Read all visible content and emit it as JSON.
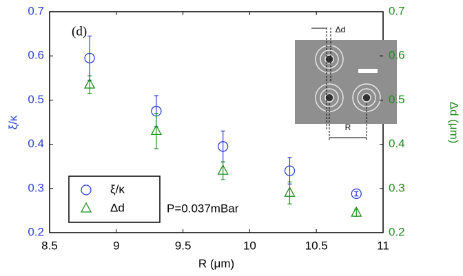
{
  "chart_data": {
    "type": "scatter",
    "panel_label": "(d)",
    "annotation": "P=0.037mBar",
    "x_label": "R (μm)",
    "y_label": "ξ/κ",
    "y2_label": "Δd (μm)",
    "inset_labels": [
      "Δd",
      "R"
    ],
    "x": [
      8.8,
      9.3,
      9.8,
      10.3,
      10.8
    ],
    "series": [
      {
        "name": "ξ/κ",
        "color": "#2a3fd4",
        "marker": "circle",
        "values": [
          0.595,
          0.475,
          0.395,
          0.34,
          0.288
        ],
        "errors": [
          0.05,
          0.035,
          0.035,
          0.03,
          0.005
        ]
      },
      {
        "name": "Δd",
        "color": "#1e8c1e",
        "marker": "triangle",
        "axis": "y2",
        "values": [
          0.535,
          0.43,
          0.34,
          0.29,
          0.245
        ],
        "errors": [
          0.02,
          0.04,
          0.02,
          0.025,
          0.008
        ]
      }
    ],
    "xlim": [
      8.5,
      11
    ],
    "xticks": [
      8.5,
      9,
      9.5,
      10,
      10.5,
      11
    ],
    "ylim": [
      0.2,
      0.7
    ],
    "yticks": [
      0.2,
      0.3,
      0.4,
      0.5,
      0.6,
      0.7
    ],
    "y2lim": [
      0.2,
      0.7
    ],
    "y2ticks": [
      0.2,
      0.3,
      0.4,
      0.5,
      0.6,
      0.7
    ],
    "legend": "lower left"
  }
}
